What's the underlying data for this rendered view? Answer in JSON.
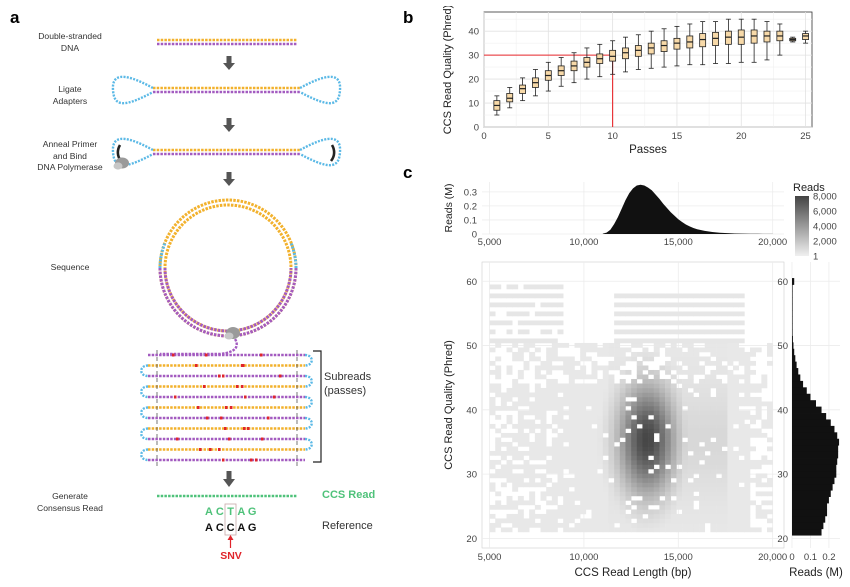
{
  "panel_labels": {
    "a": "a",
    "b": "b",
    "c": "c"
  },
  "schematic": {
    "steps": [
      "Double-stranded\nDNA",
      "Ligate\nAdapters",
      "Anneal Primer\nand Bind\nDNA Polymerase",
      "Sequence",
      "Generate\nConsensus Read"
    ],
    "subreads_label": "Subreads\n(passes)",
    "ccs_read_label": "CCS Read",
    "reference_label": "Reference",
    "read_bases": [
      "A",
      "C",
      "T",
      "A",
      "G"
    ],
    "reference_bases": [
      "A",
      "C",
      "C",
      "A",
      "G"
    ],
    "snv_label": "SNV",
    "colors": {
      "yellow": "#f2b12c",
      "purple": "#a35bc0",
      "blue": "#5bb9e6",
      "green": "#4fc27a",
      "red": "#e0242b",
      "gray": "#555555"
    }
  },
  "chart_data": [
    {
      "type": "box",
      "panel": "b",
      "xlabel": "Passes",
      "ylabel": "CCS Read Quality (Phred)",
      "xlim": [
        0,
        25.5
      ],
      "ylim": [
        0,
        48
      ],
      "xticks": [
        0,
        5,
        10,
        15,
        20,
        25
      ],
      "yticks": [
        0,
        10,
        20,
        30,
        40
      ],
      "grid": true,
      "reference_lines": {
        "x": 10,
        "y": 30,
        "color": "#e8262b"
      },
      "boxes": [
        {
          "x": 1,
          "min": 5,
          "q1": 7,
          "median": 9,
          "q3": 11,
          "max": 13
        },
        {
          "x": 2,
          "min": 8,
          "q1": 10.5,
          "median": 12,
          "q3": 14,
          "max": 16.5
        },
        {
          "x": 3,
          "min": 11,
          "q1": 14,
          "median": 16,
          "q3": 17.5,
          "max": 20.5
        },
        {
          "x": 4,
          "min": 13,
          "q1": 16.5,
          "median": 18.5,
          "q3": 20.5,
          "max": 24
        },
        {
          "x": 5,
          "min": 15,
          "q1": 19.5,
          "median": 21.5,
          "q3": 23.5,
          "max": 27
        },
        {
          "x": 6,
          "min": 17,
          "q1": 21.5,
          "median": 23.5,
          "q3": 25.5,
          "max": 29
        },
        {
          "x": 7,
          "min": 18.5,
          "q1": 23.5,
          "median": 25.5,
          "q3": 27.5,
          "max": 31
        },
        {
          "x": 8,
          "min": 20,
          "q1": 25,
          "median": 27,
          "q3": 29,
          "max": 33
        },
        {
          "x": 9,
          "min": 21,
          "q1": 26.5,
          "median": 28.5,
          "q3": 30.5,
          "max": 34.5
        },
        {
          "x": 10,
          "min": 22,
          "q1": 27.5,
          "median": 29.5,
          "q3": 32,
          "max": 36
        },
        {
          "x": 11,
          "min": 23,
          "q1": 28.5,
          "median": 31,
          "q3": 33,
          "max": 37.5
        },
        {
          "x": 12,
          "min": 24,
          "q1": 29.5,
          "median": 32,
          "q3": 34,
          "max": 38.5
        },
        {
          "x": 13,
          "min": 24.5,
          "q1": 30.5,
          "median": 33,
          "q3": 35,
          "max": 40
        },
        {
          "x": 14,
          "min": 25,
          "q1": 31.5,
          "median": 34,
          "q3": 36,
          "max": 41
        },
        {
          "x": 15,
          "min": 25.5,
          "q1": 32.5,
          "median": 35,
          "q3": 37,
          "max": 42
        },
        {
          "x": 16,
          "min": 26,
          "q1": 33,
          "median": 35.5,
          "q3": 38,
          "max": 43
        },
        {
          "x": 17,
          "min": 26,
          "q1": 33.5,
          "median": 36.5,
          "q3": 39,
          "max": 44
        },
        {
          "x": 18,
          "min": 26.5,
          "q1": 34,
          "median": 37,
          "q3": 39.5,
          "max": 44
        },
        {
          "x": 19,
          "min": 26.5,
          "q1": 34.5,
          "median": 37.5,
          "q3": 40,
          "max": 45
        },
        {
          "x": 20,
          "min": 27,
          "q1": 34.5,
          "median": 37.5,
          "q3": 40.5,
          "max": 45
        },
        {
          "x": 21,
          "min": 27,
          "q1": 35,
          "median": 38,
          "q3": 40.5,
          "max": 45
        },
        {
          "x": 22,
          "min": 28,
          "q1": 35.5,
          "median": 38,
          "q3": 40,
          "max": 44
        },
        {
          "x": 23,
          "min": 30,
          "q1": 36,
          "median": 38,
          "q3": 40,
          "max": 43
        },
        {
          "x": 24,
          "min": 35.5,
          "q1": 36,
          "median": 36.5,
          "q3": 37,
          "max": 37.5
        },
        {
          "x": 25,
          "min": 35,
          "q1": 36.5,
          "median": 38,
          "q3": 39,
          "max": 40
        }
      ]
    },
    {
      "type": "heatmap",
      "panel": "c",
      "xlabel": "CCS Read Length (bp)",
      "ylabel": "CCS Read Quality (Phred)",
      "xlim": [
        4600,
        20600
      ],
      "ylim": [
        18.5,
        63
      ],
      "xticks": [
        5000,
        10000,
        15000,
        20000
      ],
      "xtick_labels": [
        "5,000",
        "10,000",
        "15,000",
        "20,000"
      ],
      "yticks": [
        20,
        30,
        40,
        50,
        60
      ],
      "density_peak": {
        "length": 13200,
        "quality": 36
      },
      "colorbar": {
        "title": "Reads",
        "ticks": [
          1,
          2000,
          4000,
          6000,
          8000
        ],
        "tick_labels": [
          "1",
          "2,000",
          "4,000",
          "6,000",
          "8,000"
        ],
        "low_color": "#f0f0f0",
        "high_color": "#444444"
      }
    },
    {
      "type": "bar",
      "panel": "c-top",
      "xlabel": "",
      "ylabel": "Reads (M)",
      "xlim": [
        4600,
        20600
      ],
      "ylim": [
        0,
        0.37
      ],
      "yticks": [
        0,
        0.1,
        0.2,
        0.3
      ],
      "ytick_labels": [
        "0",
        "0.1",
        "0.2",
        "0.3"
      ],
      "xticks": [
        5000,
        10000,
        15000,
        20000
      ],
      "xtick_labels": [
        "5,000",
        "10,000",
        "15,000",
        "20,000"
      ],
      "x": [
        11000,
        11200,
        11400,
        11600,
        11800,
        12000,
        12200,
        12400,
        12600,
        12800,
        13000,
        13200,
        13400,
        13600,
        13800,
        14000,
        14200,
        14400,
        14600,
        14800,
        15000,
        15200,
        15400,
        15600,
        15800,
        16000,
        16400,
        16800,
        17200,
        17600,
        18000,
        18400,
        18800,
        19200,
        19600,
        20000
      ],
      "values": [
        0.003,
        0.01,
        0.03,
        0.07,
        0.12,
        0.18,
        0.24,
        0.29,
        0.325,
        0.345,
        0.35,
        0.345,
        0.33,
        0.31,
        0.28,
        0.25,
        0.215,
        0.185,
        0.155,
        0.13,
        0.105,
        0.085,
        0.068,
        0.054,
        0.043,
        0.034,
        0.022,
        0.014,
        0.009,
        0.006,
        0.004,
        0.003,
        0.002,
        0.0015,
        0.001,
        0.0008
      ]
    },
    {
      "type": "bar",
      "panel": "c-right",
      "orientation": "horizontal",
      "xlabel": "Reads (M)",
      "ylabel": "",
      "xlim": [
        0,
        0.26
      ],
      "ylim": [
        18.5,
        63
      ],
      "xticks": [
        0,
        0.1,
        0.2
      ],
      "xtick_labels": [
        "0",
        "0.1",
        "0.2"
      ],
      "yticks": [
        20,
        30,
        40,
        50,
        60
      ],
      "y": [
        21,
        22,
        23,
        24,
        25,
        26,
        27,
        28,
        29,
        30,
        31,
        32,
        33,
        34,
        35,
        36,
        37,
        38,
        39,
        40,
        41,
        42,
        43,
        44,
        45,
        46,
        47,
        48,
        49,
        50,
        51,
        52,
        53,
        54,
        55,
        56,
        57,
        58,
        59,
        60
      ],
      "values": [
        0.16,
        0.17,
        0.18,
        0.19,
        0.19,
        0.2,
        0.21,
        0.22,
        0.23,
        0.24,
        0.24,
        0.245,
        0.25,
        0.25,
        0.255,
        0.245,
        0.23,
        0.21,
        0.185,
        0.16,
        0.13,
        0.1,
        0.08,
        0.06,
        0.045,
        0.034,
        0.025,
        0.018,
        0.012,
        0.008,
        0.005,
        0.003,
        0.002,
        0.001,
        0.0008,
        0.0005,
        0.0004,
        0.0003,
        0.0002,
        0.012
      ]
    }
  ]
}
